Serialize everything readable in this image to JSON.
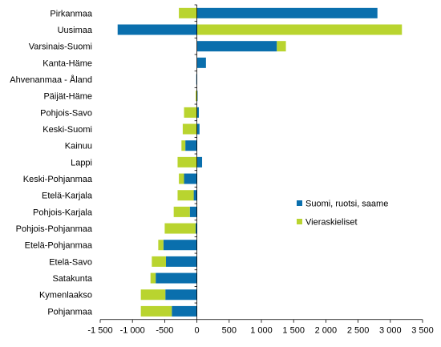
{
  "chart_data": {
    "type": "bar",
    "orientation": "horizontal",
    "stacked": true,
    "categories": [
      "Pirkanmaa",
      "Uusimaa",
      "Varsinais-Suomi",
      "Kanta-Häme",
      "Ahvenanmaa - Åland",
      "Päijät-Häme",
      "Pohjois-Savo",
      "Keski-Suomi",
      "Kainuu",
      "Lappi",
      "Keski-Pohjanmaa",
      "Etelä-Karjala",
      "Pohjois-Karjala",
      "Pohjois-Pohjanmaa",
      "Etelä-Pohjanmaa",
      "Etelä-Savo",
      "Satakunta",
      "Kymenlaakso",
      "Pohjanmaa"
    ],
    "series": [
      {
        "name": "Suomi, ruotsi, saame",
        "color": "#0a6fad",
        "values": [
          2800,
          -1230,
          1240,
          140,
          -10,
          10,
          30,
          40,
          -180,
          80,
          -200,
          -50,
          -110,
          -20,
          -520,
          -480,
          -640,
          -490,
          -390
        ]
      },
      {
        "name": "Vieraskieliset",
        "color": "#b9d42f",
        "values": [
          -280,
          3180,
          140,
          0,
          0,
          -20,
          -200,
          -220,
          -60,
          -300,
          -80,
          -250,
          -250,
          -480,
          -80,
          -220,
          -80,
          -380,
          -480
        ]
      }
    ],
    "xlim": [
      -1500,
      3500
    ],
    "xticks": [
      -1500,
      -1000,
      -500,
      0,
      500,
      1000,
      1500,
      2000,
      2500,
      3000,
      3500
    ],
    "xtick_labels": [
      "-1 500",
      "-1 000",
      "-500",
      "0",
      "500",
      "1 000",
      "1 500",
      "2 000",
      "2 500",
      "3 000",
      "3 500"
    ],
    "legend_position": "right",
    "grid": false
  }
}
